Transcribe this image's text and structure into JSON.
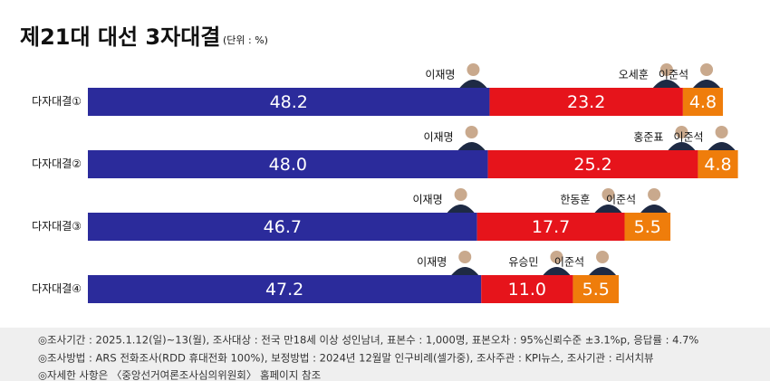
{
  "chart_data": {
    "type": "bar",
    "orientation": "horizontal",
    "stacked": true,
    "title": "제21대 대선 3자대결",
    "subtitle": "(단위 : %)",
    "categories": [
      "다자대결①",
      "다자대결②",
      "다자대결③",
      "다자대결④"
    ],
    "series": [
      {
        "color": "#2b2b9b",
        "values": [
          48.2,
          48.0,
          46.7,
          47.2
        ],
        "value_labels": [
          "48.2",
          "48.0",
          "46.7",
          "47.2"
        ],
        "labels": [
          "이재명",
          "이재명",
          "이재명",
          "이재명"
        ]
      },
      {
        "color": "#e6141b",
        "values": [
          23.2,
          25.2,
          17.7,
          11.0
        ],
        "value_labels": [
          "23.2",
          "25.2",
          "17.7",
          "11.0"
        ],
        "labels": [
          "오세훈",
          "홍준표",
          "한동훈",
          "유승민"
        ]
      },
      {
        "color": "#ef7d0b",
        "values": [
          4.8,
          4.8,
          5.5,
          5.5
        ],
        "value_labels": [
          "4.8",
          "4.8",
          "5.5",
          "5.5"
        ],
        "labels": [
          "이준석",
          "이준석",
          "이준석",
          "이준석"
        ]
      }
    ]
  },
  "notes": [
    "◎조사기간 : 2025.1.12(일)~13(월), 조사대상 : 전국 만18세 이상 성인남녀, 표본수 : 1,000명, 표본오차 : 95%신뢰수준 ±3.1%p, 응답률 : 4.7%",
    "◎조사방법 : ARS 전화조사(RDD 휴대전화 100%), 보정방법 : 2024년 12월말 인구비례(셀가중), 조사주관 : KPI뉴스, 조사기관 : 리서치뷰",
    "◎자세한 사항은 〈중앙선거여론조사심의위원회〉 홈페이지 참조"
  ]
}
